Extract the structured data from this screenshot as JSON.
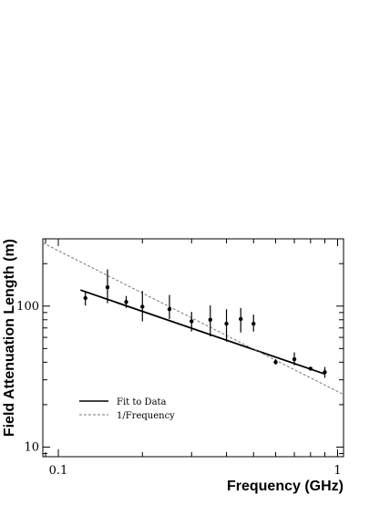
{
  "chart_data": {
    "type": "scatter",
    "xlabel": "Frequency (GHz)",
    "ylabel": "Field Attenuation Length (m)",
    "xscale": "log",
    "yscale": "log",
    "xlim": [
      0.088,
      1.05
    ],
    "ylim": [
      8.55,
      300
    ],
    "x_ticks": [
      {
        "value": 0.1,
        "label": "0.1"
      },
      {
        "value": 1,
        "label": "1"
      }
    ],
    "y_ticks": [
      {
        "value": 10,
        "label": "10"
      },
      {
        "value": 100,
        "label": "100"
      }
    ],
    "legend_position": "lower-left",
    "series": [
      {
        "kind": "points",
        "marker": "dot",
        "color": "#000000",
        "points": [
          {
            "x": 0.125,
            "y": 114,
            "ylo": 101,
            "yhi": 128
          },
          {
            "x": 0.15,
            "y": 136,
            "ylo": 105,
            "yhi": 182
          },
          {
            "x": 0.175,
            "y": 107,
            "ylo": 97,
            "yhi": 118
          },
          {
            "x": 0.2,
            "y": 99,
            "ylo": 78,
            "yhi": 128
          },
          {
            "x": 0.25,
            "y": 95,
            "ylo": 81,
            "yhi": 120
          },
          {
            "x": 0.3,
            "y": 78,
            "ylo": 66,
            "yhi": 91
          },
          {
            "x": 0.35,
            "y": 80,
            "ylo": 61,
            "yhi": 101
          },
          {
            "x": 0.4,
            "y": 75,
            "ylo": 56,
            "yhi": 95
          },
          {
            "x": 0.45,
            "y": 81,
            "ylo": 65,
            "yhi": 97
          },
          {
            "x": 0.5,
            "y": 75,
            "ylo": 66,
            "yhi": 87
          },
          {
            "x": 0.6,
            "y": 40,
            "ylo": 38.5,
            "yhi": 42
          },
          {
            "x": 0.7,
            "y": 42,
            "ylo": 38,
            "yhi": 47
          },
          {
            "x": 0.8,
            "y": 36,
            "ylo": 35,
            "yhi": 37
          },
          {
            "x": 0.9,
            "y": 34,
            "ylo": 31,
            "yhi": 37
          }
        ]
      },
      {
        "kind": "line",
        "name": "Fit to Data",
        "style": "solid",
        "color": "#000000",
        "x": [
          0.12,
          0.9
        ],
        "y": [
          130,
          33
        ]
      },
      {
        "kind": "line",
        "name": "1/Frequency",
        "style": "dashed",
        "color": "#777777",
        "x": [
          0.088,
          1.05
        ],
        "y": [
          281,
          23.6
        ]
      }
    ]
  }
}
